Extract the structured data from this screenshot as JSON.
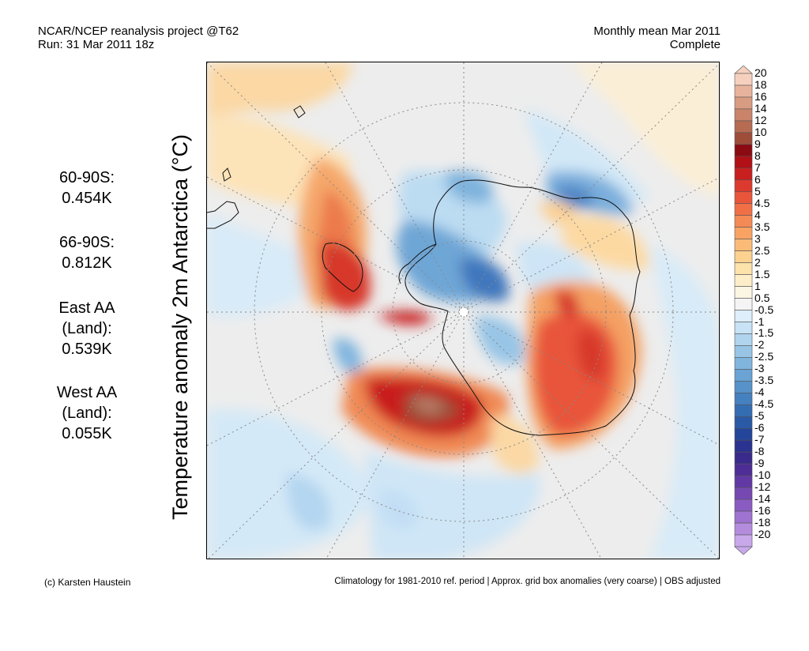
{
  "header": {
    "project": "NCAR/NCEP reanalysis project @T62",
    "run": "Run: 31 Mar 2011 18z",
    "period": "Monthly mean Mar 2011",
    "status": "Complete"
  },
  "map_title": "Temperature anomaly 2m Antarctica (°C)",
  "stats": [
    {
      "lines": [
        "60-90S:",
        "0.454K"
      ]
    },
    {
      "lines": [
        "66-90S:",
        "0.812K"
      ]
    },
    {
      "lines": [
        "East AA",
        "(Land):",
        "0.539K"
      ]
    },
    {
      "lines": [
        "West AA",
        "(Land):",
        "0.055K"
      ]
    }
  ],
  "colorbar": {
    "labels": [
      "20",
      "18",
      "16",
      "14",
      "12",
      "10",
      "9",
      "8",
      "7",
      "6",
      "5",
      "4.5",
      "4",
      "3.5",
      "3",
      "2.5",
      "2",
      "1.5",
      "1",
      "0.5",
      "-0.5",
      "-1",
      "-1.5",
      "-2",
      "-2.5",
      "-3",
      "-3.5",
      "-4",
      "-4.5",
      "-5",
      "-6",
      "-7",
      "-8",
      "-9",
      "-10",
      "-12",
      "-14",
      "-16",
      "-18",
      "-20"
    ],
    "colors": [
      "#f6d0bf",
      "#e7b39c",
      "#d89c82",
      "#c9846a",
      "#b66b53",
      "#9e4d39",
      "#8c0a12",
      "#b01016",
      "#c91f1f",
      "#dd3a2f",
      "#e9553b",
      "#f06f47",
      "#f48a55",
      "#f8a364",
      "#fbbb78",
      "#fdd291",
      "#fde2ab",
      "#fdeec9",
      "#fbf5e3",
      "#f4f4f4",
      "#deeefa",
      "#c8e3f5",
      "#b0d4ee",
      "#98c5e6",
      "#80b5de",
      "#6aa3d4",
      "#5792c9",
      "#4580bf",
      "#356db3",
      "#2a5aa6",
      "#24469a",
      "#2a338f",
      "#3a2a8c",
      "#4e2d96",
      "#6239a4",
      "#7649b2",
      "#8a5cc2",
      "#9f73d0",
      "#b48cde",
      "#c8a8ea"
    ]
  },
  "footer": {
    "credit": "(c) Karsten Haustein",
    "note": "Climatology for 1981-2010 ref. period | Approx. grid box anomalies (very coarse) | OBS adjusted"
  }
}
